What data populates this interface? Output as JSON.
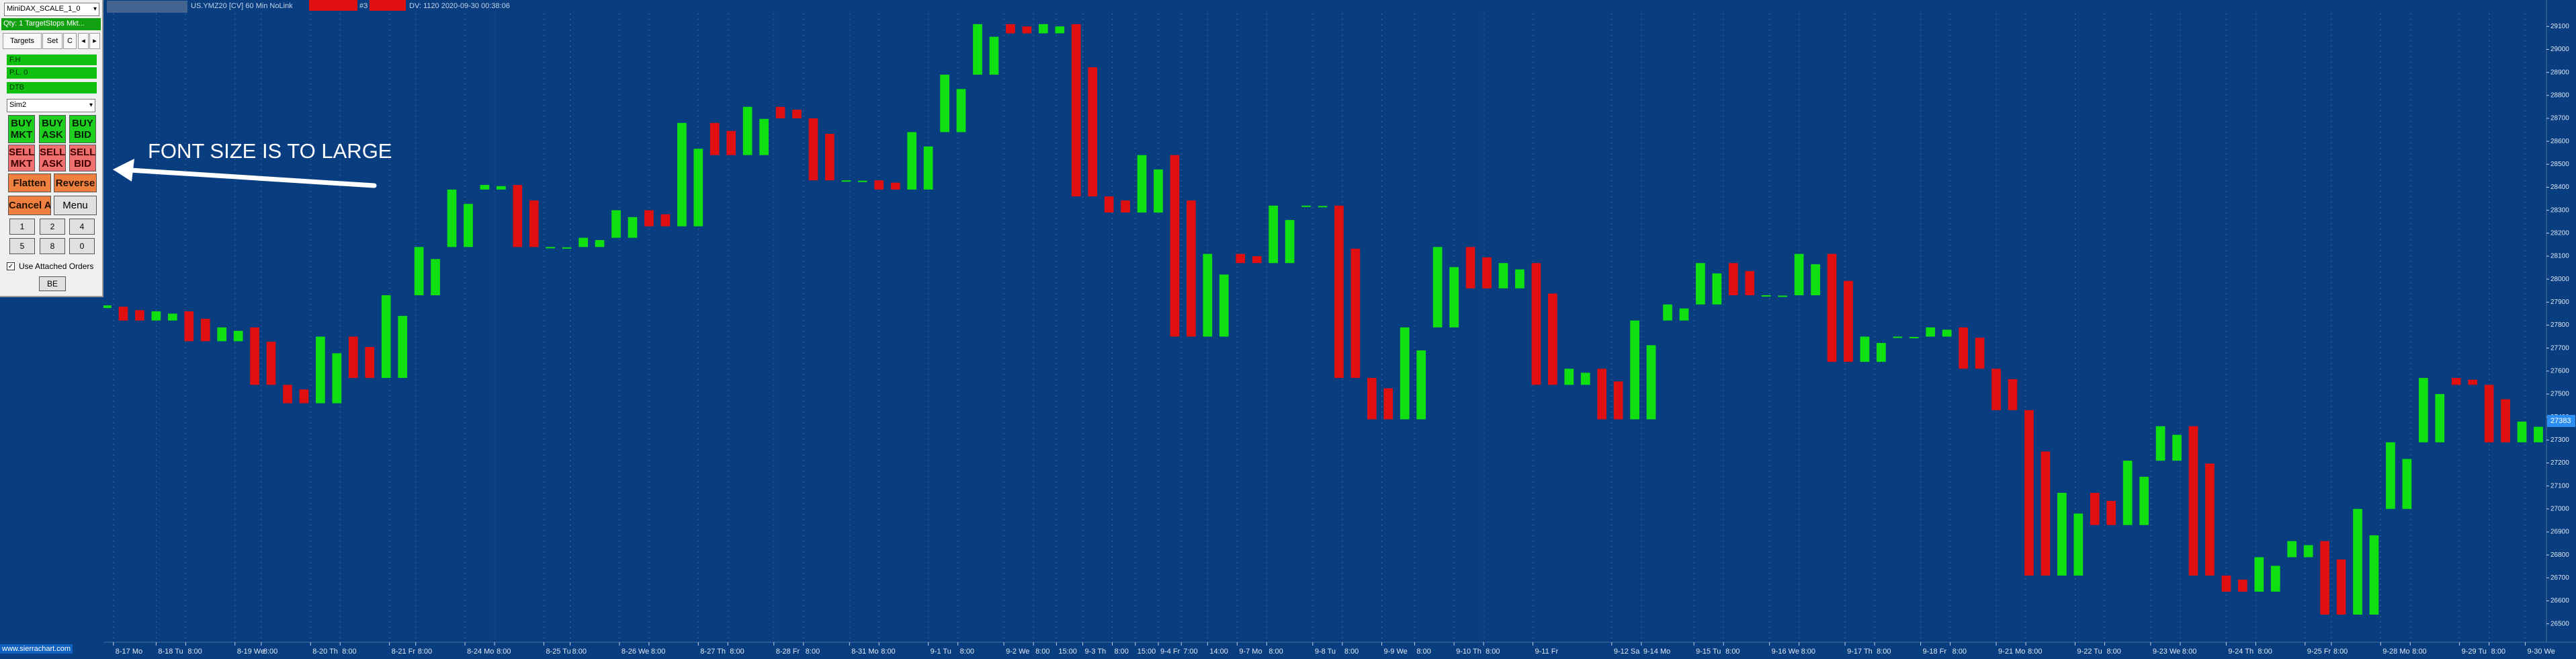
{
  "panel": {
    "symbol_select": "MiniDAX_SCALE_1_0",
    "qty_bar": "Qty: 1 TargetStops Mkt...",
    "tabs": [
      "Targets",
      "Set",
      "C"
    ],
    "status_bars": [
      "F.H",
      "P.L. 0",
      "DTB"
    ],
    "account": "Sim2",
    "order_buttons": [
      [
        "BUY",
        "MKT"
      ],
      [
        "BUY",
        "ASK"
      ],
      [
        "BUY",
        "BID"
      ],
      [
        "SELL",
        "MKT"
      ],
      [
        "SELL",
        "ASK"
      ],
      [
        "SELL",
        "BID"
      ]
    ],
    "action_buttons": [
      "Flatten",
      "Reverse",
      "Cancel All",
      "Menu"
    ],
    "quantities": [
      "1",
      "2",
      "4",
      "5",
      "8",
      "0"
    ],
    "checkbox_label": "Use Attached Orders",
    "be_button": "BE",
    "footer": "www.sierrachart.com"
  },
  "chart_header": {
    "symbol": "US.YMZ20 [CV] 60 Min  NoLink",
    "marker": "#3",
    "status": "DV: 1120 2020-09-30 00:38:06"
  },
  "annotation": "FONT SIZE IS TO LARGE",
  "chart_data": {
    "type": "candlestick",
    "up_color": "#10e010",
    "down_color": "#e01010",
    "values": [
      27880,
      27820,
      27860,
      27730,
      27790,
      27540,
      27460,
      27750,
      27570,
      27930,
      28140,
      28390,
      28410,
      28140,
      28140,
      28180,
      28300,
      28230,
      28680,
      28540,
      28750,
      28700,
      28430,
      28430,
      28390,
      28640,
      28890,
      29110,
      29070,
      29110,
      28360,
      28290,
      28540,
      27750,
      28110,
      28070,
      28320,
      28320,
      27570,
      27390,
      27790,
      28140,
      27960,
      28070,
      27540,
      27610,
      27390,
      27820,
      27890,
      28070,
      27930,
      27930,
      28110,
      27640,
      27750,
      27750,
      27790,
      27610,
      27430,
      26710,
      27070,
      26930,
      27210,
      27360,
      26710,
      26640,
      26790,
      26860,
      26540,
      27000,
      27290,
      27570,
      27540,
      27290,
      27380
    ],
    "last_price": 27383,
    "ylim": [
      26420,
      29215
    ],
    "yticks": [
      26500,
      26600,
      26700,
      26800,
      26900,
      27000,
      27100,
      27200,
      27300,
      27400,
      27500,
      27600,
      27700,
      27800,
      27900,
      28000,
      28100,
      28200,
      28300,
      28400,
      28500,
      28600,
      28700,
      28800,
      28900,
      29000,
      29100
    ],
    "xlim": [
      0,
      74
    ],
    "xticks": [
      {
        "value": 0.2,
        "label": "8-17 Mo"
      },
      {
        "value": 1.5,
        "label": "8-18 Tu"
      },
      {
        "value": 2.4,
        "label": "8:00"
      },
      {
        "value": 3.9,
        "label": "8-19 We"
      },
      {
        "value": 4.7,
        "label": "8:00"
      },
      {
        "value": 6.2,
        "label": "8-20 Th"
      },
      {
        "value": 7.1,
        "label": "8:00"
      },
      {
        "value": 8.6,
        "label": "8-21 Fr"
      },
      {
        "value": 9.4,
        "label": "8:00"
      },
      {
        "value": 10.9,
        "label": "8-24 Mo"
      },
      {
        "value": 11.8,
        "label": "8:00"
      },
      {
        "value": 13.3,
        "label": "8-25 Tu"
      },
      {
        "value": 14.1,
        "label": "8:00"
      },
      {
        "value": 15.6,
        "label": "8-26 We"
      },
      {
        "value": 16.5,
        "label": "8:00"
      },
      {
        "value": 18.0,
        "label": "8-27 Th"
      },
      {
        "value": 18.9,
        "label": "8:00"
      },
      {
        "value": 20.3,
        "label": "8-28 Fr"
      },
      {
        "value": 21.2,
        "label": "8:00"
      },
      {
        "value": 22.6,
        "label": "8-31 Mo"
      },
      {
        "value": 23.5,
        "label": "8:00"
      },
      {
        "value": 25.0,
        "label": "9-1 Tu"
      },
      {
        "value": 25.9,
        "label": "8:00"
      },
      {
        "value": 27.3,
        "label": "9-2 We"
      },
      {
        "value": 28.2,
        "label": "8:00"
      },
      {
        "value": 28.9,
        "label": "15:00"
      },
      {
        "value": 29.7,
        "label": "9-3 Th"
      },
      {
        "value": 30.6,
        "label": "8:00"
      },
      {
        "value": 31.3,
        "label": "15:00"
      },
      {
        "value": 32.0,
        "label": "9-4 Fr"
      },
      {
        "value": 32.7,
        "label": "7:00"
      },
      {
        "value": 33.5,
        "label": "14:00"
      },
      {
        "value": 34.4,
        "label": "9-7 Mo"
      },
      {
        "value": 35.3,
        "label": "8:00"
      },
      {
        "value": 36.7,
        "label": "9-8 Tu"
      },
      {
        "value": 37.6,
        "label": "8:00"
      },
      {
        "value": 38.8,
        "label": "9-9 We"
      },
      {
        "value": 39.8,
        "label": "8:00"
      },
      {
        "value": 41.0,
        "label": "9-10 Th"
      },
      {
        "value": 41.9,
        "label": "8:00"
      },
      {
        "value": 43.4,
        "label": "9-11 Fr"
      },
      {
        "value": 45.8,
        "label": "9-12 Sa"
      },
      {
        "value": 46.7,
        "label": "9-14 Mo"
      },
      {
        "value": 48.3,
        "label": "9-15 Tu"
      },
      {
        "value": 49.2,
        "label": "8:00"
      },
      {
        "value": 50.6,
        "label": "9-16 We"
      },
      {
        "value": 51.5,
        "label": "8:00"
      },
      {
        "value": 52.9,
        "label": "9-17 Th"
      },
      {
        "value": 53.8,
        "label": "8:00"
      },
      {
        "value": 55.2,
        "label": "9-18 Fr"
      },
      {
        "value": 56.1,
        "label": "8:00"
      },
      {
        "value": 57.5,
        "label": "9-21 Mo"
      },
      {
        "value": 58.4,
        "label": "8:00"
      },
      {
        "value": 59.9,
        "label": "9-22 Tu"
      },
      {
        "value": 60.8,
        "label": "8:00"
      },
      {
        "value": 62.2,
        "label": "9-23 We"
      },
      {
        "value": 63.1,
        "label": "8:00"
      },
      {
        "value": 64.5,
        "label": "9-24 Th"
      },
      {
        "value": 65.4,
        "label": "8:00"
      },
      {
        "value": 66.9,
        "label": "9-25 Fr"
      },
      {
        "value": 67.7,
        "label": "8:00"
      },
      {
        "value": 69.2,
        "label": "9-28 Mo"
      },
      {
        "value": 70.1,
        "label": "8:00"
      },
      {
        "value": 71.6,
        "label": "9-29 Tu"
      },
      {
        "value": 72.5,
        "label": "8:00"
      },
      {
        "value": 73.6,
        "label": "9-30 We"
      }
    ]
  }
}
